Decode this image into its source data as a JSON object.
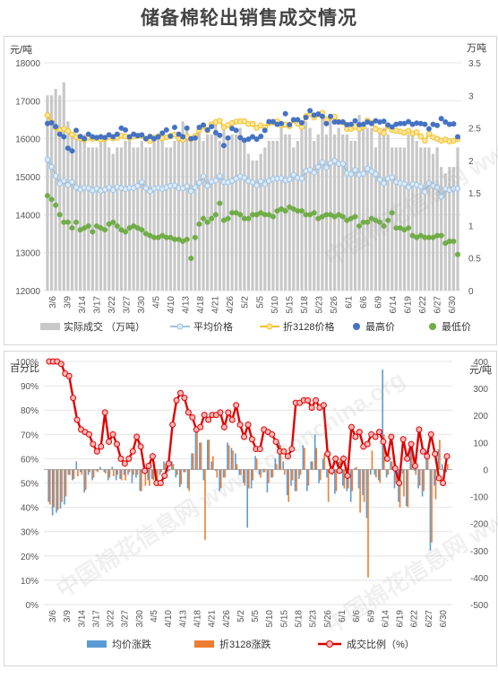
{
  "title": "储备棉轮出销售成交情况",
  "watermark": "中国棉花信息网 www.cottonchina.org",
  "colors": {
    "volume_bar": "#c8c8c8",
    "avg_price": "#9dc3e6",
    "avg_price_dot": "#ddebf7",
    "price3128": "#f2c12e",
    "price3128_dot": "#ffe699",
    "max_price": "#4472c4",
    "min_price": "#70ad47",
    "avg_change": "#5b9bd5",
    "change3128": "#ed7d31",
    "ratio": "#e00000",
    "ratio_dot": "#f4b6b6"
  },
  "chart_data": [
    {
      "type": "line",
      "title": "",
      "left_axis_unit": "元/吨",
      "right_axis_unit": "万吨",
      "ylim_left": [
        12000,
        18000
      ],
      "yticks_left": [
        "12000",
        "13000",
        "14000",
        "15000",
        "16000",
        "17000",
        "18000"
      ],
      "ylim_right": [
        0,
        3.5
      ],
      "yticks_right": [
        "0",
        "0.5",
        "1",
        "1.5",
        "2",
        "2.5",
        "3",
        "3.5"
      ],
      "x_ticks": [
        "3/6",
        "3/9",
        "3/14",
        "3/17",
        "3/22",
        "3/27",
        "3/30",
        "4/5",
        "4/10",
        "4/13",
        "4/18",
        "4/21",
        "4/26",
        "5/2",
        "5/5",
        "5/10",
        "5/15",
        "5/18",
        "5/23",
        "5/26",
        "6/1",
        "6/6",
        "6/9",
        "6/14",
        "6/19",
        "6/22",
        "6/27",
        "6/30"
      ],
      "grid": true,
      "legend_position": "bottom",
      "legend": [
        "实际成交 （万吨）",
        "平均价格",
        "折3128价格",
        "最高价",
        "最低价"
      ],
      "series": [
        {
          "name": "实际成交 （万吨）",
          "values": [
            3.0,
            3.0,
            3.1,
            3.0,
            3.2,
            2.6,
            2.4,
            2.4,
            2.3,
            2.4,
            2.2,
            2.2,
            2.2,
            2.3,
            2.3,
            2.2,
            2.1,
            2.2,
            2.2,
            2.3,
            2.3,
            2.2,
            2.2,
            2.3,
            2.2,
            2.2,
            2.3,
            2.4,
            2.4,
            2.2,
            2.2,
            2.3,
            2.4,
            2.6,
            2.5,
            2.3,
            2.3,
            2.5,
            2.3,
            2.4,
            2.4,
            2.6,
            2.3,
            2.5,
            2.3,
            2.4,
            2.4,
            2.5,
            2.3,
            2.1,
            2.0,
            2.0,
            2.1,
            2.2,
            2.3,
            2.3,
            2.3,
            2.5,
            2.4,
            2.4,
            2.2,
            2.3,
            2.5,
            2.6,
            2.5,
            2.3,
            2.4,
            2.7,
            2.4,
            2.7,
            2.4,
            2.5,
            2.4,
            2.4,
            2.3,
            2.3,
            2.7,
            2.6,
            2.5,
            2.5,
            2.2,
            2.5,
            2.5,
            2.4,
            2.2,
            2.2,
            2.2,
            2.2,
            2.4,
            2.4,
            2.3,
            2.2,
            2.2,
            2.2,
            2.1,
            2.2,
            1.9,
            1.8,
            1.9,
            1.9,
            2.2
          ]
        },
        {
          "name": "平均价格",
          "values": [
            15450,
            15260,
            15020,
            14820,
            14890,
            14780,
            14860,
            14720,
            14660,
            14710,
            14700,
            14640,
            14690,
            14630,
            14660,
            14720,
            14650,
            14730,
            14700,
            14670,
            14710,
            14700,
            14760,
            14860,
            14700,
            14620,
            14690,
            14710,
            14680,
            14720,
            14760,
            14770,
            14700,
            14690,
            14750,
            14620,
            14720,
            14840,
            15010,
            14760,
            14870,
            14900,
            15020,
            14860,
            14850,
            14890,
            14950,
            15010,
            14970,
            14880,
            14850,
            14770,
            14880,
            14800,
            14890,
            14940,
            14950,
            14960,
            14900,
            14930,
            15050,
            14970,
            14950,
            15150,
            15180,
            15110,
            15260,
            15380,
            15240,
            15360,
            15420,
            15340,
            15340,
            15090,
            15070,
            15180,
            15050,
            15080,
            15210,
            15140,
            15070,
            14920,
            14830,
            14950,
            14980,
            14860,
            14830,
            14810,
            14720,
            14810,
            14780,
            14740,
            14600,
            14830,
            14760,
            14710,
            14470,
            14680,
            14650,
            14690,
            14690
          ]
        },
        {
          "name": "折3128价格",
          "values": [
            16620,
            16440,
            16300,
            16220,
            16260,
            16200,
            16110,
            16040,
            16010,
            15970,
            16030,
            16000,
            16020,
            15980,
            15990,
            16050,
            16010,
            16030,
            16080,
            16060,
            16030,
            16060,
            16080,
            16080,
            16000,
            15940,
            16030,
            16060,
            16010,
            16040,
            16070,
            16110,
            16010,
            15970,
            16060,
            15990,
            16070,
            16220,
            16320,
            16220,
            16380,
            16440,
            16470,
            16300,
            16360,
            16410,
            16450,
            16460,
            16460,
            16390,
            16390,
            16290,
            16350,
            16300,
            16410,
            16430,
            16460,
            16350,
            16370,
            16330,
            16490,
            16400,
            16310,
            16590,
            16650,
            16560,
            16640,
            16680,
            16500,
            16570,
            16580,
            16440,
            16440,
            16260,
            16260,
            16310,
            16260,
            16320,
            16480,
            16420,
            16260,
            16210,
            16150,
            16330,
            16230,
            16210,
            16190,
            16160,
            16210,
            16140,
            16170,
            16060,
            15950,
            16130,
            16040,
            16000,
            15950,
            15980,
            15930,
            15950,
            15990
          ]
        },
        {
          "name": "最高价",
          "values": [
            16400,
            16420,
            16320,
            16120,
            16050,
            15750,
            15680,
            16220,
            16060,
            16000,
            16120,
            16050,
            16030,
            16050,
            16030,
            16100,
            16050,
            16120,
            16280,
            16230,
            16050,
            16120,
            16080,
            16100,
            16000,
            16060,
            16000,
            16050,
            16150,
            16230,
            16070,
            16300,
            16120,
            16050,
            16280,
            16000,
            16020,
            16300,
            16360,
            16230,
            16320,
            16160,
            16090,
            15820,
            16020,
            16270,
            16220,
            16030,
            15960,
            15990,
            16050,
            15990,
            16060,
            16220,
            16450,
            16450,
            16380,
            16400,
            16660,
            16370,
            16500,
            16500,
            16420,
            16560,
            16740,
            16620,
            16650,
            16590,
            16400,
            16590,
            16440,
            16440,
            16440,
            16370,
            16380,
            16470,
            16370,
            16380,
            16440,
            16400,
            16470,
            16440,
            16460,
            16360,
            16310,
            16380,
            16400,
            16400,
            16450,
            16380,
            16410,
            16400,
            16380,
            16260,
            16380,
            16350,
            16530,
            16440,
            16380,
            16390,
            16050
          ]
        },
        {
          "name": "最低价",
          "values": [
            14500,
            14400,
            14250,
            14000,
            13800,
            13800,
            13650,
            13800,
            13600,
            13650,
            13700,
            13550,
            13700,
            13650,
            13600,
            13750,
            13800,
            13700,
            13600,
            13550,
            13650,
            13700,
            13650,
            13600,
            13500,
            13450,
            13400,
            13400,
            13450,
            13400,
            13400,
            13350,
            13350,
            13300,
            13350,
            12850,
            13400,
            13750,
            13900,
            13800,
            13900,
            14000,
            14300,
            13850,
            13900,
            14050,
            14050,
            14000,
            13900,
            13900,
            14000,
            14000,
            14050,
            14000,
            14000,
            13950,
            14100,
            14150,
            14100,
            14200,
            14150,
            14100,
            14100,
            14000,
            14000,
            14050,
            13900,
            13950,
            14000,
            14000,
            13950,
            14000,
            13950,
            13850,
            13900,
            13950,
            13700,
            13800,
            13800,
            13900,
            13850,
            13800,
            13700,
            13850,
            14050,
            13650,
            13650,
            13600,
            13650,
            13450,
            13400,
            13450,
            13400,
            13400,
            13400,
            13450,
            13450,
            13250,
            13300,
            13300,
            12950
          ]
        }
      ]
    },
    {
      "type": "bar",
      "title": "",
      "left_axis_unit": "百分比",
      "right_axis_unit": "元/吨",
      "ylim_left": [
        0,
        100
      ],
      "yticks_left": [
        "0%",
        "10%",
        "20%",
        "30%",
        "40%",
        "50%",
        "60%",
        "70%",
        "80%",
        "90%",
        "100%"
      ],
      "ylim_right": [
        -500,
        400
      ],
      "yticks_right": [
        "-500",
        "-400",
        "-300",
        "-200",
        "-100",
        "0",
        "100",
        "200",
        "300",
        "400"
      ],
      "x_ticks": [
        "3/6",
        "3/9",
        "3/14",
        "3/17",
        "3/22",
        "3/27",
        "3/30",
        "4/5",
        "4/10",
        "4/13",
        "4/18",
        "4/21",
        "4/26",
        "5/2",
        "5/5",
        "5/10",
        "5/15",
        "5/18",
        "5/23",
        "5/26",
        "6/1",
        "6/6",
        "6/9",
        "6/14",
        "6/19",
        "6/22",
        "6/27",
        "6/30"
      ],
      "grid": true,
      "legend_position": "bottom",
      "legend": [
        "均价涨跌",
        "折3128涨跌",
        "成交比例（%）"
      ],
      "series": [
        {
          "name": "均价涨跌",
          "values": [
            -120,
            -170,
            -160,
            -145,
            -130,
            -20,
            -40,
            30,
            -10,
            -85,
            -20,
            -40,
            -5,
            10,
            -10,
            -40,
            10,
            -40,
            -35,
            -20,
            -20,
            -50,
            -30,
            -80,
            20,
            -40,
            -35,
            -60,
            -20,
            30,
            -10,
            30,
            -30,
            -65,
            -10,
            -70,
            60,
            160,
            100,
            -40,
            110,
            30,
            -5,
            -80,
            -30,
            100,
            80,
            60,
            -20,
            -50,
            -215,
            -70,
            50,
            -20,
            -10,
            -85,
            -30,
            40,
            100,
            30,
            -95,
            -60,
            -80,
            -35,
            90,
            -80,
            30,
            130,
            -50,
            40,
            -30,
            -5,
            -90,
            30,
            -60,
            -80,
            -120,
            5,
            -70,
            -95,
            -180,
            -20,
            -20,
            -40,
            370,
            -30,
            30,
            -70,
            -120,
            -15,
            -135,
            100,
            -5,
            -70,
            -100,
            70,
            -300,
            -60,
            75,
            20,
            -10
          ]
        },
        {
          "name": "折3128涨跌",
          "values": [
            -130,
            -140,
            -150,
            -120,
            -100,
            -20,
            -35,
            -25,
            -20,
            -75,
            -10,
            -30,
            -10,
            0,
            -15,
            -30,
            -25,
            -20,
            -40,
            -40,
            -10,
            -20,
            -20,
            -80,
            -60,
            -60,
            -40,
            -50,
            -10,
            20,
            -5,
            20,
            -20,
            -55,
            -10,
            -80,
            60,
            145,
            100,
            -260,
            110,
            50,
            -30,
            -70,
            -30,
            90,
            70,
            20,
            -20,
            -60,
            -70,
            -40,
            40,
            -30,
            -10,
            -50,
            -30,
            20,
            90,
            -20,
            -120,
            -40,
            -80,
            -20,
            80,
            -60,
            30,
            80,
            -40,
            60,
            -120,
            -20,
            -80,
            40,
            -70,
            -70,
            -80,
            10,
            -160,
            -120,
            -400,
            70,
            -30,
            -50,
            130,
            -20,
            30,
            -50,
            -140,
            -100,
            -140,
            100,
            -20,
            -60,
            -80,
            50,
            -270,
            -110,
            110,
            -10,
            20
          ]
        },
        {
          "name": "成交比例（%）",
          "values": [
            100,
            100,
            100,
            99,
            95,
            94,
            85,
            76,
            72,
            71,
            70,
            66,
            63,
            65,
            79,
            67,
            70,
            66,
            60,
            58,
            60,
            63,
            69,
            65,
            55,
            57,
            61,
            50,
            50,
            53,
            58,
            74,
            84,
            87,
            85,
            79,
            77,
            72,
            73,
            78,
            76,
            78,
            78,
            79,
            73,
            79,
            76,
            82,
            74,
            69,
            74,
            68,
            64,
            64,
            72,
            71,
            70,
            67,
            63,
            63,
            61,
            64,
            83,
            83,
            84,
            84,
            81,
            84,
            81,
            82,
            62,
            55,
            60,
            55,
            60,
            53,
            73,
            69,
            71,
            65,
            66,
            70,
            69,
            71,
            67,
            60,
            69,
            56,
            50,
            68,
            60,
            66,
            57,
            72,
            63,
            61,
            70,
            62,
            52,
            50,
            61
          ]
        }
      ]
    }
  ]
}
